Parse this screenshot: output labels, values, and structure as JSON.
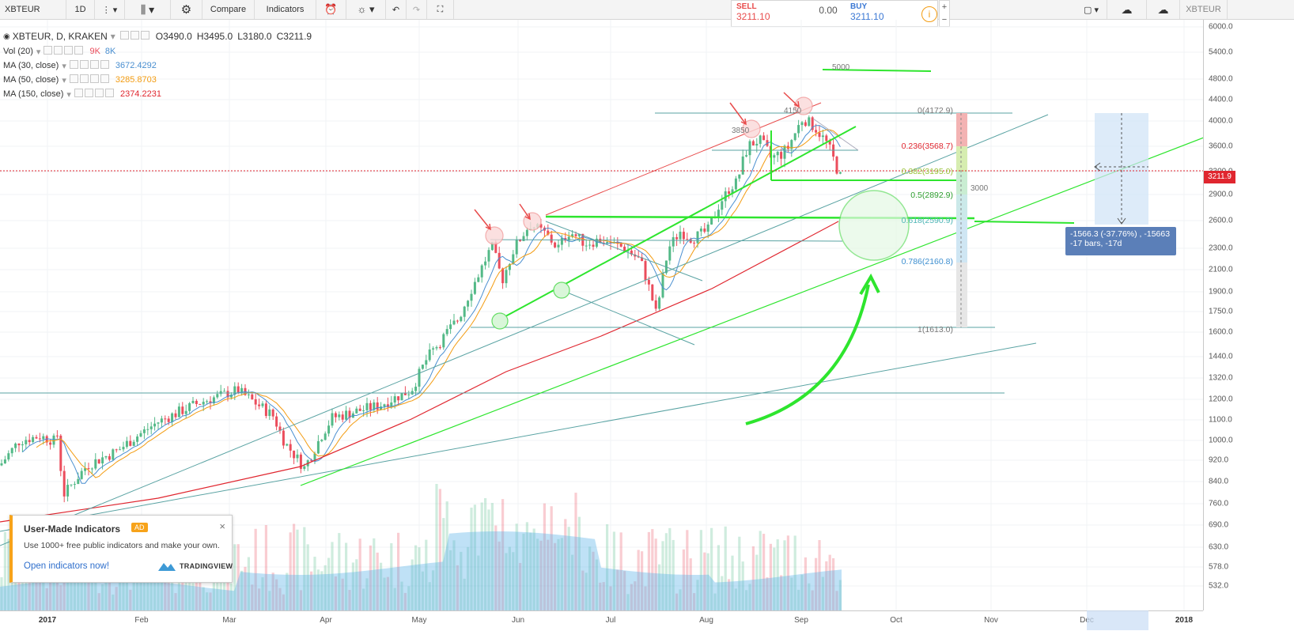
{
  "toolbar": {
    "symbol": "XBTEUR",
    "interval": "1D",
    "compare_label": "Compare",
    "indicators_label": "Indicators",
    "right_symbol": "XBTEUR"
  },
  "trade": {
    "sell_label": "SELL",
    "sell_price": "3211.10",
    "spread": "0.00",
    "buy_label": "BUY",
    "buy_price": "3211.10"
  },
  "legend": {
    "main": {
      "title": "XBTEUR, D, KRAKEN",
      "o": "O3490.0",
      "h": "H3495.0",
      "l": "L3180.0",
      "c": "C3211.9"
    },
    "vol": {
      "title": "Vol (20)",
      "v1": "9K",
      "v2": "8K"
    },
    "ma30": {
      "title": "MA (30, close)",
      "value": "3672.4292"
    },
    "ma50": {
      "title": "MA (50, close)",
      "value": "3285.8703"
    },
    "ma150": {
      "title": "MA (150, close)",
      "value": "2374.2231"
    }
  },
  "price_axis": {
    "ticks": [
      "6000.0",
      "5400.0",
      "4800.0",
      "4400.0",
      "4000.0",
      "3600.0",
      "3300.0",
      "2900.0",
      "2600.0",
      "2300.0",
      "2100.0",
      "1900.0",
      "1750.0",
      "1600.0",
      "1440.0",
      "1320.0",
      "1200.0",
      "1100.0",
      "1000.0",
      "920.0",
      "840.0",
      "760.0",
      "690.0",
      "630.0",
      "578.0",
      "532.0"
    ],
    "current": "3211.9"
  },
  "time_axis": {
    "labels": [
      "2017",
      "Feb",
      "Mar",
      "Apr",
      "May",
      "Jun",
      "Jul",
      "Aug",
      "Sep",
      "Oct",
      "Nov",
      "Dec",
      "2018"
    ]
  },
  "fib": {
    "levels": [
      "0(4172.9)",
      "0.236(3568.7)",
      "0.382(3195.0)",
      "0.5(2892.9)",
      "0.618(2590.9)",
      "0.786(2160.8)",
      "1(1613.0)"
    ]
  },
  "annotations": {
    "l5000": "5000",
    "l4150": "4150",
    "l3850": "3850",
    "l3000": "3000"
  },
  "measure": {
    "line1": "-1566.3 (-37.76%) , -15663",
    "line2": "-17 bars, -17d"
  },
  "promo": {
    "title": "User-Made Indicators",
    "badge": "AD",
    "body": "Use 1000+ free public indicators and make your own.",
    "link": "Open indicators now!",
    "brand": "TRADINGVIEW"
  },
  "colors": {
    "up": "#53b987",
    "down": "#eb4d5c",
    "ma30": "#4a8fd0",
    "ma50": "#f39c12",
    "ma150": "#e0262f",
    "green_line": "#2ee52e",
    "teal_line": "#5aa3a3"
  }
}
